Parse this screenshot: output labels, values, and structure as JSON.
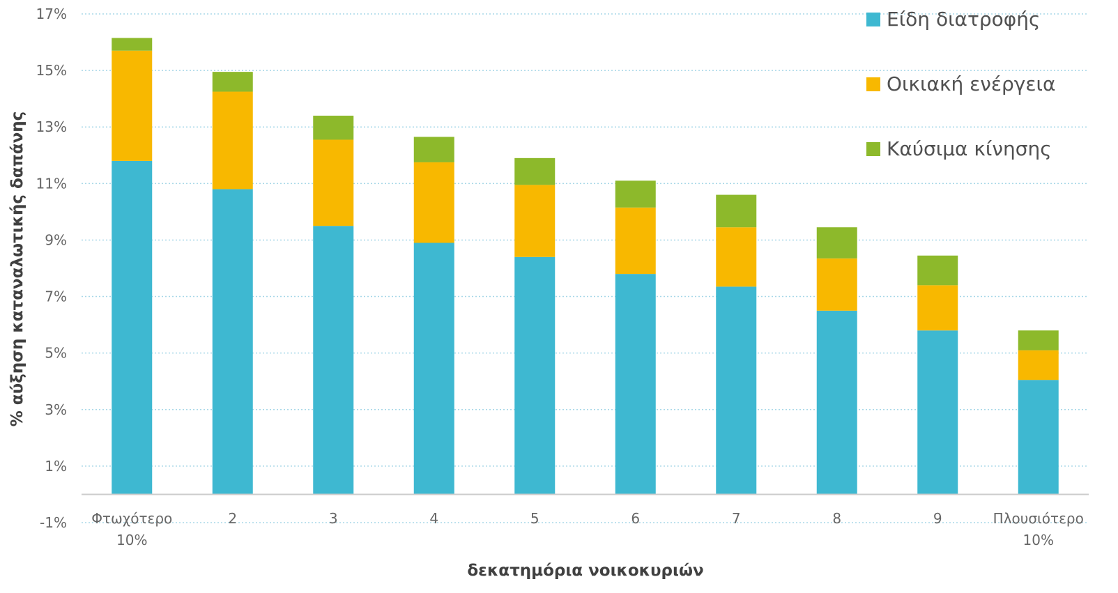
{
  "chart_data": {
    "type": "bar",
    "stacked": true,
    "title": "",
    "xlabel": "δεκατημόρια νοικοκυριών",
    "ylabel": "% αύξηση καταναλωτικής δαπάνης",
    "ylim": [
      -1,
      17
    ],
    "yticks": [
      -1,
      1,
      3,
      5,
      7,
      9,
      11,
      13,
      15,
      17
    ],
    "ytick_labels": [
      "-1%",
      "1%",
      "3%",
      "5%",
      "7%",
      "9%",
      "11%",
      "13%",
      "15%",
      "17%"
    ],
    "grid": true,
    "legend_position": "top-right",
    "categories": [
      [
        "Φτωχότερο",
        "10%"
      ],
      [
        "2"
      ],
      [
        "3"
      ],
      [
        "4"
      ],
      [
        "5"
      ],
      [
        "6"
      ],
      [
        "7"
      ],
      [
        "8"
      ],
      [
        "9"
      ],
      [
        "Πλουσιότερο",
        "10%"
      ]
    ],
    "series": [
      {
        "name": "Είδη διατροφής",
        "color": "#3EB8D1",
        "values": [
          11.8,
          10.8,
          9.5,
          8.9,
          8.4,
          7.8,
          7.35,
          6.5,
          5.8,
          4.05
        ]
      },
      {
        "name": "Οικιακή ενέργεια",
        "color": "#F8B800",
        "values": [
          3.9,
          3.45,
          3.05,
          2.85,
          2.55,
          2.35,
          2.1,
          1.85,
          1.6,
          1.05
        ]
      },
      {
        "name": "Καύσιμα κίνησης",
        "color": "#8DB92B",
        "values": [
          0.45,
          0.7,
          0.85,
          0.9,
          0.95,
          0.95,
          1.15,
          1.1,
          1.05,
          0.7
        ]
      }
    ]
  }
}
